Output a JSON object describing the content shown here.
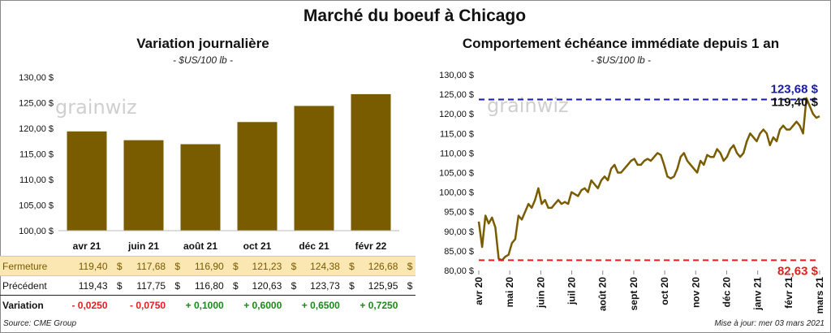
{
  "main_title": "Marché du boeuf à Chicago",
  "watermark": "grainwiz",
  "left_panel": {
    "title": "Variation journalière",
    "unit": "- $US/100 lb -"
  },
  "right_panel": {
    "title": "Comportement échéance immédiate depuis 1 an",
    "unit": "- $US/100 lb -"
  },
  "table": {
    "currency": "$",
    "rows": [
      {
        "label": "Fermeture",
        "values": [
          "119,40",
          "117,68",
          "116,90",
          "121,23",
          "124,38",
          "126,68"
        ],
        "currency": true
      },
      {
        "label": "Précédent",
        "values": [
          "119,43",
          "117,75",
          "116,80",
          "120,63",
          "123,73",
          "125,95"
        ],
        "currency": true
      },
      {
        "label": "Variation",
        "values": [
          "- 0,0250",
          "- 0,0750",
          "+ 0,1000",
          "+ 0,6000",
          "+ 0,6500",
          "+ 0,7250"
        ],
        "currency": false
      }
    ]
  },
  "footer": {
    "source": "Source: CME Group",
    "updated": "Mise à jour: mer 03 mars 2021"
  },
  "colors": {
    "bar": "#7a5c00",
    "line": "#7a5c00",
    "high_line": "#1a1aa8",
    "low_line": "#e02020",
    "negative": "#e02020",
    "positive": "#1a8a1a"
  },
  "chart_data": [
    {
      "type": "bar",
      "title": "Variation journalière",
      "categories": [
        "avr 21",
        "juin 21",
        "août 21",
        "oct 21",
        "déc 21",
        "févr 22"
      ],
      "values": [
        119.4,
        117.68,
        116.9,
        121.23,
        124.38,
        126.68
      ],
      "yticks": [
        "100,00 $",
        "105,00 $",
        "110,00 $",
        "115,00 $",
        "120,00 $",
        "125,00 $",
        "130,00 $"
      ],
      "ylim": [
        100,
        130
      ],
      "grid": false
    },
    {
      "type": "line",
      "title": "Comportement échéance immédiate depuis 1 an",
      "ylim": [
        80,
        130
      ],
      "yticks": [
        "80,00 $",
        "85,00 $",
        "90,00 $",
        "95,00 $",
        "100,00 $",
        "105,00 $",
        "110,00 $",
        "115,00 $",
        "120,00 $",
        "125,00 $",
        "130,00 $"
      ],
      "xticks": [
        "avr 20",
        "mai 20",
        "juin 20",
        "juil 20",
        "août 20",
        "sept 20",
        "oct 20",
        "nov 20",
        "déc 20",
        "janv 21",
        "févr 21",
        "mars 21"
      ],
      "grid": false,
      "reference_lines": [
        {
          "value": 123.68,
          "label": "123,68 $",
          "color": "#1a1aa8"
        },
        {
          "value": 82.63,
          "label": "82,63 $",
          "color": "#e02020"
        }
      ],
      "last_label": "119,40 $",
      "series": [
        {
          "values": [
            92.5,
            86,
            94,
            92,
            93.5,
            91,
            83,
            82.6,
            83.5,
            84,
            87,
            88,
            94,
            93,
            95,
            97,
            96,
            98,
            101,
            97,
            98,
            96,
            96,
            97,
            98,
            97,
            97.5,
            97,
            100,
            99.5,
            99,
            100.5,
            101,
            100,
            103,
            102,
            101,
            103,
            104,
            103,
            106,
            107,
            105,
            105,
            106,
            107,
            108,
            108.5,
            107,
            107,
            108,
            108.5,
            108,
            109,
            110,
            109.5,
            107,
            104,
            103.5,
            104,
            106,
            109,
            110,
            108,
            107,
            106,
            105,
            108,
            107,
            109.5,
            109,
            109,
            111,
            110,
            108,
            109,
            111,
            112,
            110,
            109,
            110,
            113,
            115,
            114,
            113,
            115,
            116,
            115,
            112,
            114,
            113,
            116,
            117,
            116,
            116,
            117,
            118,
            117,
            115,
            124,
            122,
            120,
            119,
            119.4
          ]
        }
      ]
    }
  ]
}
